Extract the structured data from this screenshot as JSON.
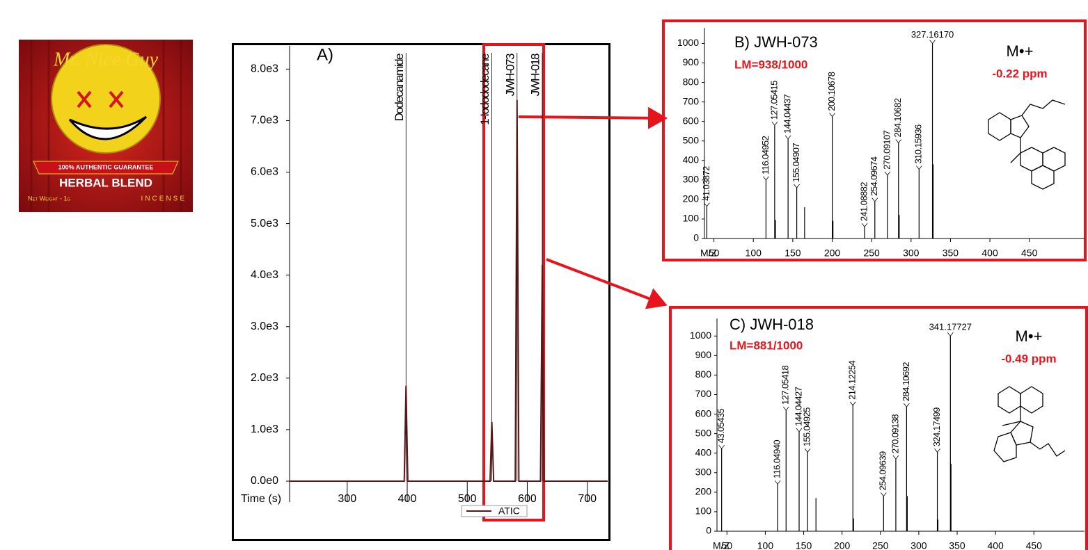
{
  "package": {
    "brand": "Mr. Nice Guy",
    "guarantee": "100% AUTHENTIC GUARANTEE",
    "product": "HERBAL BLEND",
    "weight": "Net Weight - 1g",
    "kind": "INCENSE"
  },
  "chart_data": [
    {
      "type": "line",
      "panel_label": "A)",
      "xlabel": "Time (s)",
      "xlim": [
        204,
        734
      ],
      "xticks": [
        300,
        400,
        500,
        600,
        700
      ],
      "ylim": [
        0,
        8450
      ],
      "yticks": [
        {
          "value": 0,
          "label": "0.0e0"
        },
        {
          "value": 1000,
          "label": "1.0e3"
        },
        {
          "value": 2000,
          "label": "2.0e3"
        },
        {
          "value": 3000,
          "label": "3.0e3"
        },
        {
          "value": 4000,
          "label": "4.0e3"
        },
        {
          "value": 5000,
          "label": "5.0e3"
        },
        {
          "value": 6000,
          "label": "6.0e3"
        },
        {
          "value": 7000,
          "label": "7.0e3"
        },
        {
          "value": 8000,
          "label": "8.0e3"
        }
      ],
      "series": [
        {
          "name": "ATIC",
          "color": "#5b1717",
          "x": [
            204,
            395,
            398,
            401,
            538,
            541,
            544,
            580,
            583,
            586,
            622,
            625,
            628,
            734
          ],
          "values": [
            0,
            0,
            1850,
            0,
            0,
            1150,
            0,
            0,
            7400,
            0,
            0,
            4200,
            0,
            0
          ]
        }
      ],
      "annotations": [
        {
          "text": "Dodecanamide",
          "x": 398
        },
        {
          "text": "1-Iodododecane",
          "x": 541
        },
        {
          "text": "JWH-073",
          "x": 583
        },
        {
          "text": "JWH-018",
          "x": 625
        }
      ],
      "legend": "bottom"
    },
    {
      "type": "spectrum",
      "title": "B) JWH-073",
      "match": "LM=938/1000",
      "ion": "M•+",
      "error": "-0.22 ppm",
      "xlabel": "M/Z",
      "xlim": [
        38,
        520
      ],
      "xticks": [
        50,
        100,
        150,
        200,
        250,
        300,
        350,
        400,
        450
      ],
      "ylim": [
        0,
        1080
      ],
      "yticks": [
        0,
        100,
        200,
        300,
        400,
        500,
        600,
        700,
        800,
        900,
        1000
      ],
      "color": "#000000",
      "x": [
        41.03872,
        116.04952,
        127.05415,
        128,
        144.04437,
        155.04907,
        165,
        200.10678,
        201,
        241.08882,
        254.09674,
        270.09107,
        284.10682,
        285,
        310.15936,
        327.1617,
        328
      ],
      "x_labels": [
        "41.03872",
        "116.04952",
        "127.05415",
        null,
        "144.04437",
        "155.04907",
        null,
        "200.10678",
        null,
        "241.08882",
        "254.09674",
        "270.09107",
        "284.10682",
        null,
        "310.15936",
        "327.16170",
        null
      ],
      "values": [
        165,
        300,
        580,
        95,
        510,
        260,
        160,
        625,
        90,
        60,
        190,
        325,
        490,
        120,
        355,
        1000,
        380
      ]
    },
    {
      "type": "spectrum",
      "title": "C) JWH-018",
      "match": "LM=881/1000",
      "ion": "M•+",
      "error": "-0.49 ppm",
      "xlabel": "M/Z",
      "xlim": [
        37,
        516
      ],
      "xticks": [
        50,
        100,
        150,
        200,
        250,
        300,
        350,
        400,
        450
      ],
      "ylim": [
        0,
        1090
      ],
      "yticks": [
        0,
        100,
        200,
        300,
        400,
        500,
        600,
        700,
        800,
        900,
        1000
      ],
      "color": "#000000",
      "x": [
        43.05435,
        116.0494,
        127.05418,
        144.04427,
        155.04925,
        166,
        214.12254,
        215,
        254.09639,
        270.09138,
        284.10692,
        285,
        324.17499,
        325,
        341.17727,
        342
      ],
      "x_labels": [
        "43.05435",
        "116.04940",
        "127.05418",
        "144.04427",
        "155.04925",
        null,
        "214.12254",
        null,
        "254.09639",
        "270.09138",
        "284.10692",
        null,
        "324.17499",
        null,
        "341.17727",
        null
      ],
      "values": [
        423,
        242,
        620,
        510,
        405,
        170,
        645,
        65,
        180,
        370,
        637,
        180,
        405,
        60,
        1000,
        345
      ]
    }
  ]
}
